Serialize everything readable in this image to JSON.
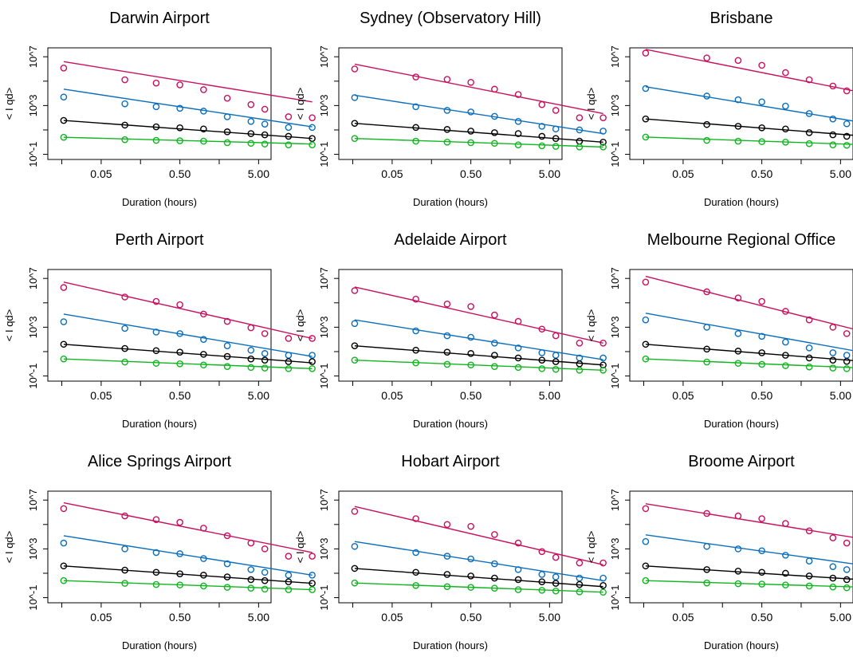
{
  "chart_data": [
    {
      "type": "scatter",
      "title": "Darwin Airport",
      "xlabel": "Duration (hours)",
      "ylabel": "< I qd>",
      "x_log": true,
      "y_log": true,
      "x_ticks": [
        0.05,
        0.5,
        5
      ],
      "x_tick_labels": [
        "0.05",
        "0.50",
        "5.00"
      ],
      "y_ticks": [
        0.1,
        1000,
        10000000
      ],
      "y_tick_labels": [
        "10^-1",
        "10^3",
        "10^7"
      ],
      "durations": [
        0.0167,
        0.1,
        0.25,
        0.5,
        1,
        2,
        4,
        6,
        12,
        24
      ],
      "series": [
        {
          "color": "#c8105e",
          "points": [
            1200000.0,
            130000.0,
            70000.0,
            50000.0,
            20000.0,
            4000.0,
            1200.0,
            500.0,
            120.0,
            100.0
          ],
          "fit": [
            4000000.0,
            2000.0
          ]
        },
        {
          "color": "#0a6ebd",
          "points": [
            5000.0,
            1400.0,
            800.0,
            600.0,
            350.0,
            120.0,
            50.0,
            30.0,
            16.0,
            16.0
          ],
          "fit": [
            22000.0,
            18.0
          ]
        },
        {
          "color": "#000000",
          "points": [
            60.0,
            25.0,
            18.0,
            15.0,
            12.0,
            7,
            5,
            4,
            3,
            2
          ],
          "fit": [
            60.0,
            2
          ]
        },
        {
          "color": "#11b520",
          "points": [
            2.5,
            1.6,
            1.4,
            1.3,
            1.2,
            0.9,
            0.8,
            0.7,
            0.6,
            0.6
          ],
          "fit": [
            2.5,
            0.7
          ]
        }
      ]
    },
    {
      "type": "scatter",
      "title": "Sydney (Observatory Hill)",
      "xlabel": "Duration (hours)",
      "ylabel": "< I qd>",
      "x_log": true,
      "y_log": true,
      "x_ticks": [
        0.05,
        0.5,
        5
      ],
      "x_tick_labels": [
        "0.05",
        "0.50",
        "5.00"
      ],
      "y_ticks": [
        0.1,
        1000,
        10000000
      ],
      "y_tick_labels": [
        "10^-1",
        "10^3",
        "10^7"
      ],
      "durations": [
        0.0167,
        0.1,
        0.25,
        0.5,
        1,
        2,
        4,
        6,
        12,
        24
      ],
      "series": [
        {
          "color": "#c8105e",
          "points": [
            1000000.0,
            220000.0,
            140000.0,
            80000.0,
            22000.0,
            8000.0,
            1200.0,
            400.0,
            100.0,
            100.0
          ],
          "fit": [
            2500000.0,
            220.0
          ]
        },
        {
          "color": "#0a6ebd",
          "points": [
            4500.0,
            800.0,
            400.0,
            300.0,
            130.0,
            50.0,
            20.0,
            12.0,
            10.0,
            8
          ],
          "fit": [
            7000.0,
            5
          ]
        },
        {
          "color": "#000000",
          "points": [
            35.0,
            16.0,
            11.0,
            8,
            6,
            5,
            3,
            2,
            1.2,
            1
          ],
          "fit": [
            35.0,
            1
          ]
        },
        {
          "color": "#11b520",
          "points": [
            2,
            1.2,
            1,
            0.9,
            0.8,
            0.6,
            0.5,
            0.45,
            0.4,
            0.4
          ],
          "fit": [
            2,
            0.4
          ]
        }
      ]
    },
    {
      "type": "scatter",
      "title": "Brisbane",
      "xlabel": "Duration (hours)",
      "ylabel": "< I qd>",
      "x_log": true,
      "y_log": true,
      "x_ticks": [
        0.05,
        0.5,
        5
      ],
      "x_tick_labels": [
        "0.05",
        "0.50",
        "5.00"
      ],
      "y_ticks": [
        0.1,
        1000,
        10000000
      ],
      "y_tick_labels": [
        "10^-1",
        "10^3",
        "10^7"
      ],
      "durations": [
        0.0167,
        0.1,
        0.25,
        0.5,
        1,
        2,
        4,
        6,
        12,
        24
      ],
      "series": [
        {
          "color": "#c8105e",
          "points": [
            20000000.0,
            8000000.0,
            5000000.0,
            2000000.0,
            500000.0,
            130000.0,
            40000.0,
            16000.0,
            5000.0,
            5000.0
          ],
          "fit": [
            40000000.0,
            3500.0
          ]
        },
        {
          "color": "#0a6ebd",
          "points": [
            25000.0,
            6000.0,
            3000.0,
            2000.0,
            900.0,
            220.0,
            80.0,
            32.0,
            15.0,
            15.0
          ],
          "fit": [
            35000.0,
            15.0
          ]
        },
        {
          "color": "#000000",
          "points": [
            80.0,
            28.0,
            20.0,
            15.0,
            12.0,
            6,
            4,
            3,
            2,
            2
          ],
          "fit": [
            80.0,
            2
          ]
        },
        {
          "color": "#11b520",
          "points": [
            2.6,
            1.4,
            1.2,
            1.1,
            1,
            0.75,
            0.6,
            0.55,
            0.5,
            0.5
          ],
          "fit": [
            2.6,
            0.5
          ]
        }
      ]
    },
    {
      "type": "scatter",
      "title": "Perth Airport",
      "xlabel": "Duration (hours)",
      "ylabel": "< I qd>",
      "x_log": true,
      "y_log": true,
      "x_ticks": [
        0.05,
        0.5,
        5
      ],
      "x_tick_labels": [
        "0.05",
        "0.50",
        "5.00"
      ],
      "y_ticks": [
        0.1,
        1000,
        10000000
      ],
      "y_tick_labels": [
        "10^-1",
        "10^3",
        "10^7"
      ],
      "durations": [
        0.0167,
        0.1,
        0.25,
        0.5,
        1,
        2,
        4,
        6,
        12,
        24
      ],
      "series": [
        {
          "color": "#c8105e",
          "points": [
            1800000.0,
            300000.0,
            130000.0,
            70000.0,
            12000.0,
            3000.0,
            900.0,
            300.0,
            120.0,
            120.0
          ],
          "fit": [
            5000000.0,
            120.0
          ]
        },
        {
          "color": "#0a6ebd",
          "points": [
            2800.0,
            800.0,
            400.0,
            300.0,
            100.0,
            30.0,
            13.0,
            7,
            5,
            5
          ],
          "fit": [
            12000.0,
            4
          ]
        },
        {
          "color": "#000000",
          "points": [
            40.0,
            18.0,
            12.0,
            9,
            6,
            4,
            2.5,
            2,
            1.5,
            1.5
          ],
          "fit": [
            40.0,
            1.2
          ]
        },
        {
          "color": "#11b520",
          "points": [
            2.5,
            1.4,
            1.1,
            1,
            0.8,
            0.6,
            0.5,
            0.45,
            0.4,
            0.4
          ],
          "fit": [
            2.5,
            0.4
          ]
        }
      ]
    },
    {
      "type": "scatter",
      "title": "Adelaide Airport",
      "xlabel": "Duration (hours)",
      "ylabel": "< I qd>",
      "x_log": true,
      "y_log": true,
      "x_ticks": [
        0.05,
        0.5,
        5
      ],
      "x_tick_labels": [
        "0.05",
        "0.50",
        "5.00"
      ],
      "y_ticks": [
        0.1,
        1000,
        10000000
      ],
      "y_tick_labels": [
        "10^-1",
        "10^3",
        "10^7"
      ],
      "durations": [
        0.0167,
        0.1,
        0.25,
        0.5,
        1,
        2,
        4,
        6,
        12,
        24
      ],
      "series": [
        {
          "color": "#c8105e",
          "points": [
            1000000.0,
            200000.0,
            80000.0,
            50000.0,
            10000.0,
            3000.0,
            700.0,
            200.0,
            50.0,
            50.0
          ],
          "fit": [
            2000000.0,
            50.0
          ]
        },
        {
          "color": "#0a6ebd",
          "points": [
            2000.0,
            500.0,
            200.0,
            150.0,
            50.0,
            20.0,
            8,
            5,
            3,
            3
          ],
          "fit": [
            4000.0,
            2.2
          ]
        },
        {
          "color": "#000000",
          "points": [
            30.0,
            13.0,
            9,
            7,
            5,
            3,
            2,
            1.5,
            1,
            0.8
          ],
          "fit": [
            30.0,
            0.8
          ]
        },
        {
          "color": "#11b520",
          "points": [
            2,
            1.2,
            0.9,
            0.8,
            0.6,
            0.5,
            0.4,
            0.35,
            0.3,
            0.3
          ],
          "fit": [
            2,
            0.3
          ]
        }
      ]
    },
    {
      "type": "scatter",
      "title": "Melbourne Regional Office",
      "xlabel": "Duration (hours)",
      "ylabel": "< I qd>",
      "x_log": true,
      "y_log": true,
      "x_ticks": [
        0.05,
        0.5,
        5
      ],
      "x_tick_labels": [
        "0.05",
        "0.50",
        "5.00"
      ],
      "y_ticks": [
        0.1,
        1000,
        10000000
      ],
      "y_tick_labels": [
        "10^-1",
        "10^3",
        "10^7"
      ],
      "durations": [
        0.0167,
        0.1,
        0.25,
        0.5,
        1,
        2,
        4,
        6,
        12,
        24
      ],
      "series": [
        {
          "color": "#c8105e",
          "points": [
            5000000.0,
            800000.0,
            250000.0,
            130000.0,
            20000.0,
            4000.0,
            1000.0,
            300.0,
            100.0,
            100.0
          ],
          "fit": [
            15000000.0,
            100.0
          ]
        },
        {
          "color": "#0a6ebd",
          "points": [
            4000.0,
            1000.0,
            300.0,
            180.0,
            60.0,
            20.0,
            8,
            5,
            3,
            3
          ],
          "fit": [
            14000.0,
            3
          ]
        },
        {
          "color": "#000000",
          "points": [
            40.0,
            16.0,
            11.0,
            8,
            5,
            3,
            2,
            1.6,
            1.2,
            1.1
          ],
          "fit": [
            40.0,
            1
          ]
        },
        {
          "color": "#11b520",
          "points": [
            2.5,
            1.4,
            1.1,
            0.9,
            0.7,
            0.55,
            0.45,
            0.4,
            0.35,
            0.35
          ],
          "fit": [
            2.5,
            0.35
          ]
        }
      ]
    },
    {
      "type": "scatter",
      "title": "Alice Springs Airport",
      "xlabel": "Duration (hours)",
      "ylabel": "< I qd>",
      "x_log": true,
      "y_log": true,
      "x_ticks": [
        0.05,
        0.5,
        5
      ],
      "x_tick_labels": [
        "0.05",
        "0.50",
        "5.00"
      ],
      "y_ticks": [
        0.1,
        1000,
        10000000
      ],
      "y_tick_labels": [
        "10^-1",
        "10^3",
        "10^7"
      ],
      "durations": [
        0.0167,
        0.1,
        0.25,
        0.5,
        1,
        2,
        4,
        6,
        12,
        24
      ],
      "series": [
        {
          "color": "#c8105e",
          "points": [
            2000000.0,
            500000.0,
            250000.0,
            150000.0,
            50000.0,
            12000.0,
            3000.0,
            1000.0,
            250.0,
            250.0
          ],
          "fit": [
            6000000.0,
            500.0
          ]
        },
        {
          "color": "#0a6ebd",
          "points": [
            3000.0,
            1000.0,
            500.0,
            400.0,
            160.0,
            60.0,
            20.0,
            12.0,
            7,
            7
          ],
          "fit": [
            12000.0,
            7
          ]
        },
        {
          "color": "#000000",
          "points": [
            40.0,
            18.0,
            12.0,
            9,
            7,
            5,
            3,
            2.5,
            2,
            1.5
          ],
          "fit": [
            40.0,
            1.5
          ]
        },
        {
          "color": "#11b520",
          "points": [
            2.5,
            1.5,
            1.2,
            1.1,
            0.9,
            0.7,
            0.6,
            0.5,
            0.45,
            0.45
          ],
          "fit": [
            2.5,
            0.45
          ]
        }
      ]
    },
    {
      "type": "scatter",
      "title": "Hobart Airport",
      "xlabel": "Duration (hours)",
      "ylabel": "< I qd>",
      "x_log": true,
      "y_log": true,
      "x_ticks": [
        0.05,
        0.5,
        5
      ],
      "x_tick_labels": [
        "0.05",
        "0.50",
        "5.00"
      ],
      "y_ticks": [
        0.1,
        1000,
        10000000
      ],
      "y_tick_labels": [
        "10^-1",
        "10^3",
        "10^7"
      ],
      "durations": [
        0.0167,
        0.1,
        0.25,
        0.5,
        1,
        2,
        4,
        6,
        12,
        24
      ],
      "series": [
        {
          "color": "#c8105e",
          "points": [
            1200000.0,
            300000.0,
            100000.0,
            70000.0,
            15000.0,
            3000.0,
            600.0,
            200.0,
            70.0,
            70.0
          ],
          "fit": [
            3000000.0,
            50.0
          ]
        },
        {
          "color": "#0a6ebd",
          "points": [
            1600.0,
            500.0,
            250.0,
            150.0,
            60.0,
            20.0,
            8,
            5,
            4,
            4
          ],
          "fit": [
            4000.0,
            2.5
          ]
        },
        {
          "color": "#000000",
          "points": [
            25.0,
            12.0,
            8,
            6,
            4,
            3,
            2,
            1.5,
            1.2,
            1
          ],
          "fit": [
            25.0,
            0.8
          ]
        },
        {
          "color": "#11b520",
          "points": [
            1.6,
            1,
            0.8,
            0.7,
            0.6,
            0.45,
            0.4,
            0.35,
            0.3,
            0.28
          ],
          "fit": [
            1.6,
            0.28
          ]
        }
      ]
    },
    {
      "type": "scatter",
      "title": "Broome Airport",
      "xlabel": "Duration (hours)",
      "ylabel": "< I qd>",
      "x_log": true,
      "y_log": true,
      "x_ticks": [
        0.05,
        0.5,
        5
      ],
      "x_tick_labels": [
        "0.05",
        "0.50",
        "5.00"
      ],
      "y_ticks": [
        0.1,
        1000,
        10000000
      ],
      "y_tick_labels": [
        "10^-1",
        "10^3",
        "10^7"
      ],
      "durations": [
        0.0167,
        0.1,
        0.25,
        0.5,
        1,
        2,
        4,
        6,
        12,
        24
      ],
      "series": [
        {
          "color": "#c8105e",
          "points": [
            2000000.0,
            800000.0,
            500000.0,
            300000.0,
            120000.0,
            30000.0,
            8000.0,
            3000.0,
            700.0,
            700.0
          ],
          "fit": [
            5000000.0,
            2500.0
          ]
        },
        {
          "color": "#0a6ebd",
          "points": [
            4000.0,
            1600.0,
            1000.0,
            700.0,
            300.0,
            100.0,
            35.0,
            20.0,
            10.0,
            10.0
          ],
          "fit": [
            14000.0,
            20.0
          ]
        },
        {
          "color": "#000000",
          "points": [
            40.0,
            20.0,
            15.0,
            12.0,
            10.0,
            6,
            4,
            3,
            2.2,
            1.8
          ],
          "fit": [
            40.0,
            2
          ]
        },
        {
          "color": "#11b520",
          "points": [
            2.5,
            1.6,
            1.4,
            1.3,
            1.1,
            0.9,
            0.75,
            0.65,
            0.6,
            0.6
          ],
          "fit": [
            2.5,
            0.6
          ]
        }
      ]
    }
  ]
}
